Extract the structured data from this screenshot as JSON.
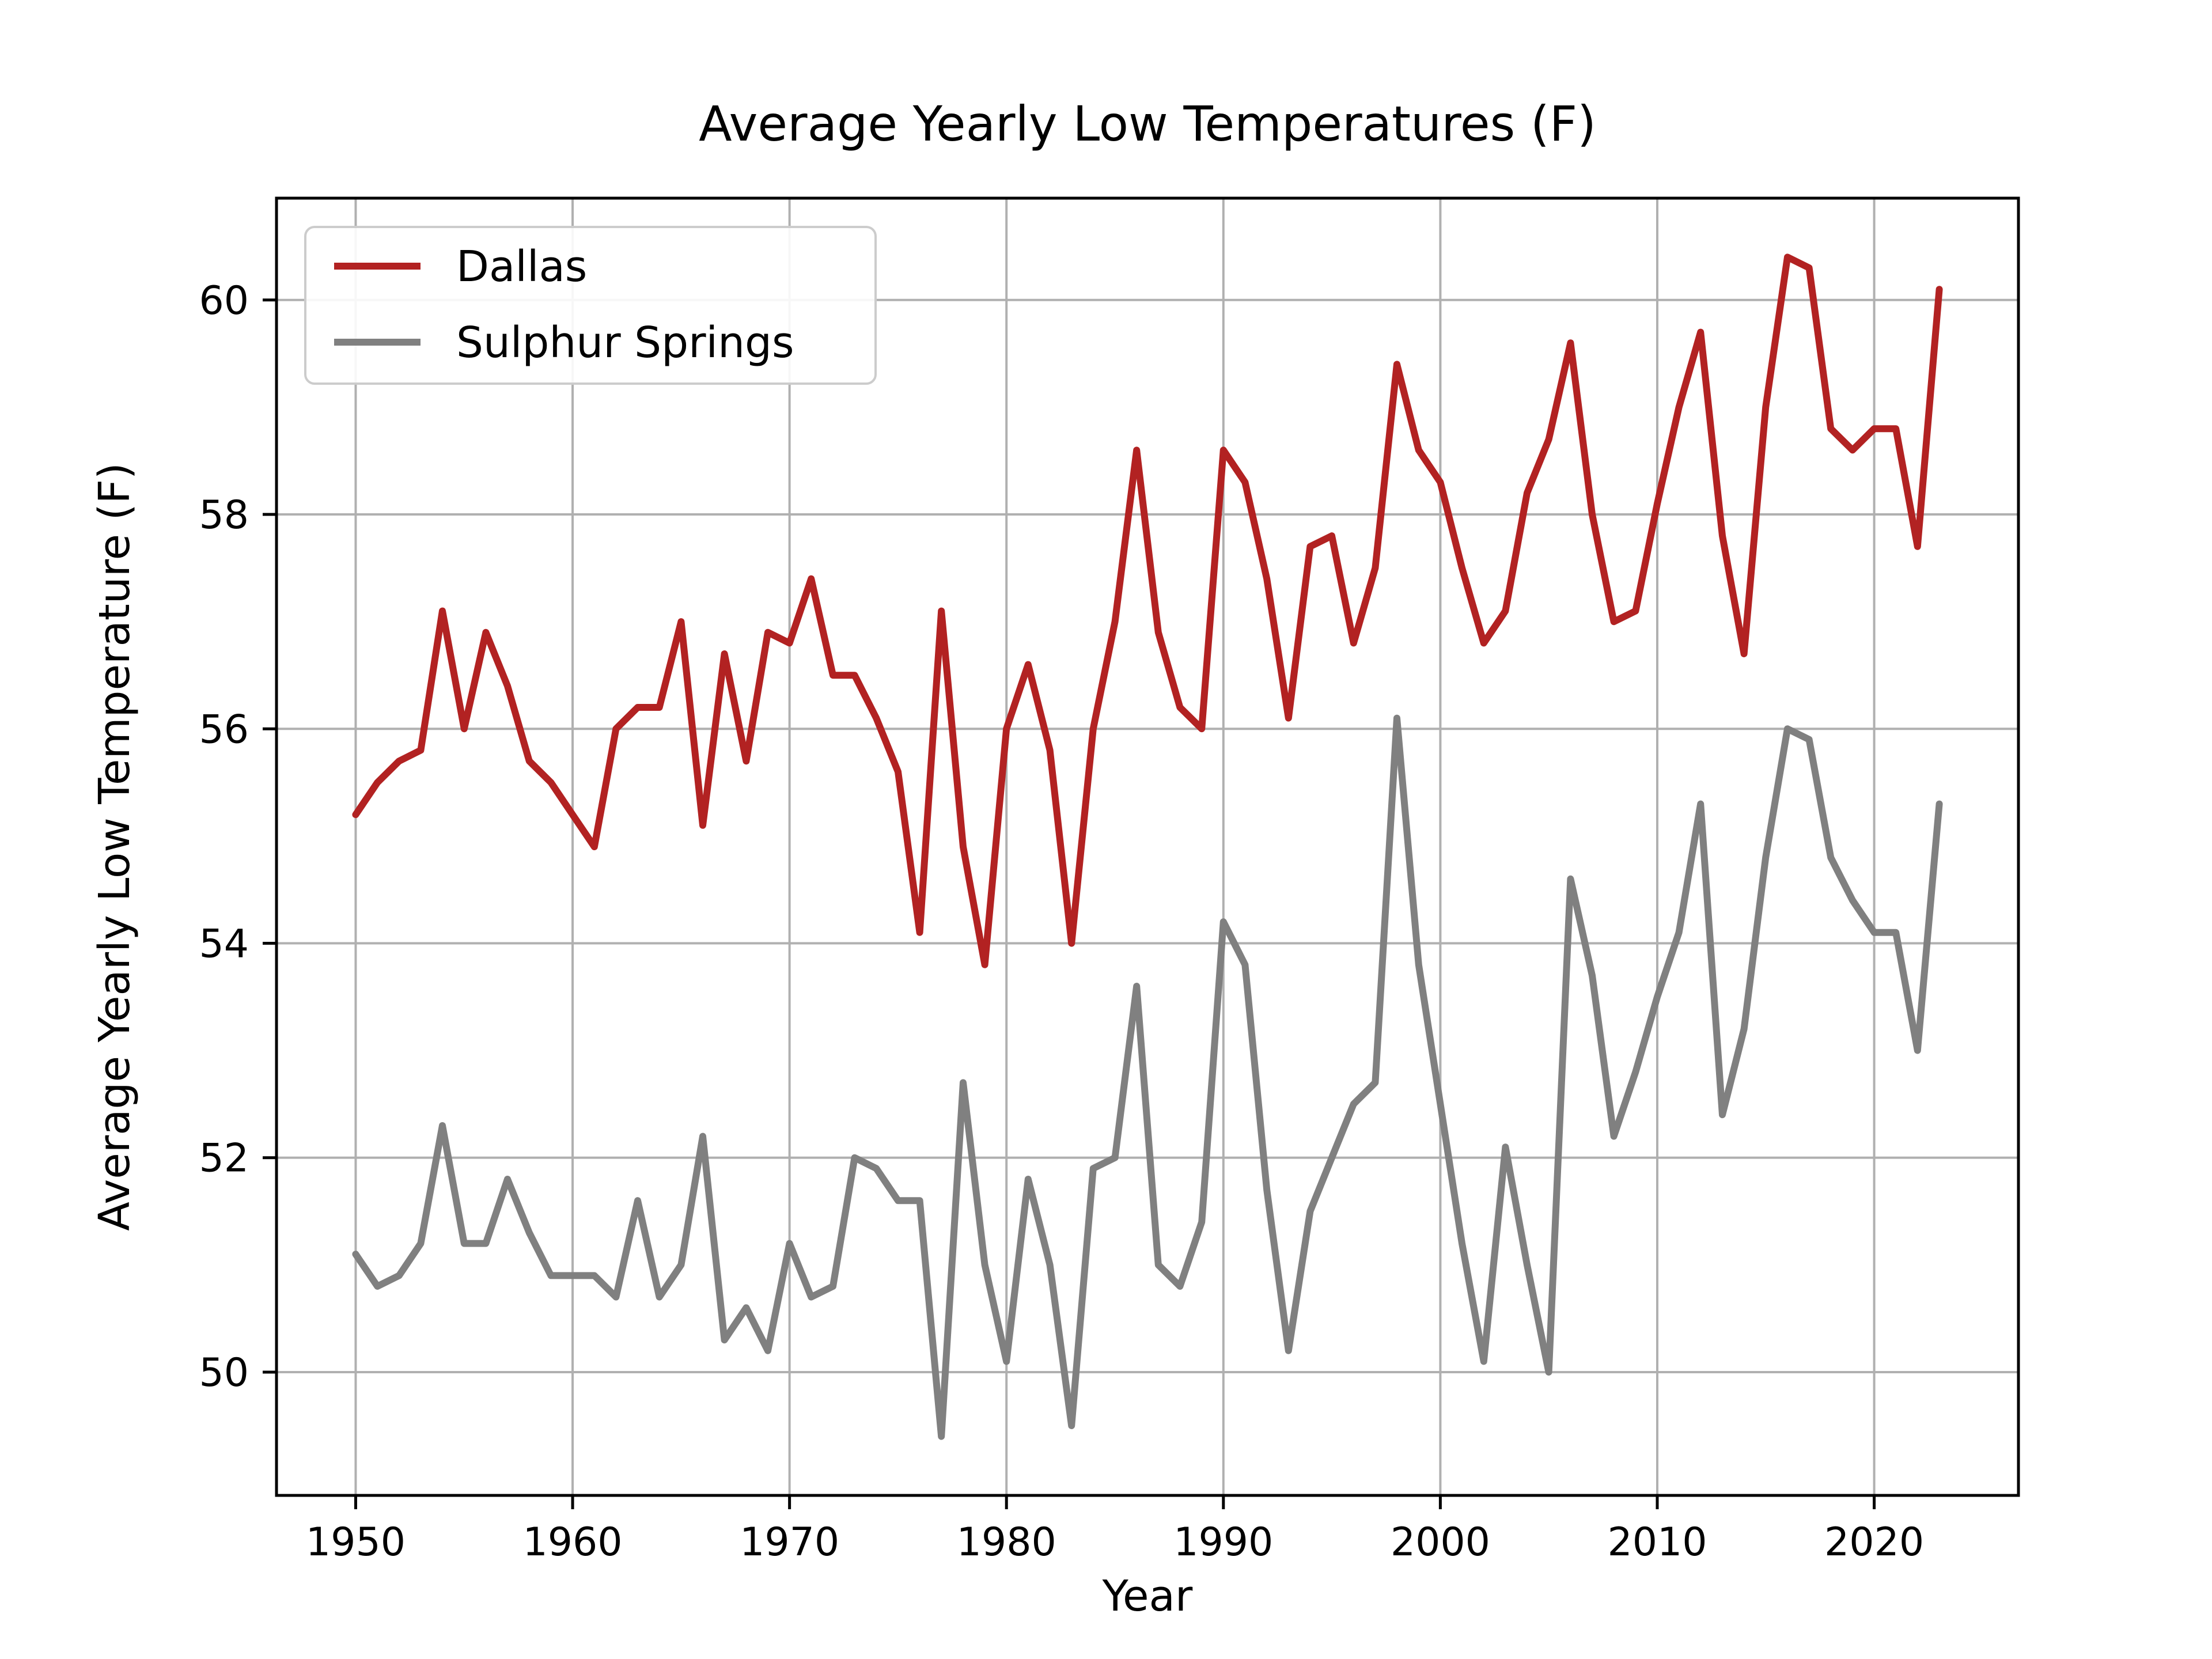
{
  "chart_data": {
    "type": "line",
    "title": "Average Yearly Low Temperatures (F)",
    "xlabel": "Year",
    "ylabel": "Average Yearly Low Temperature (F)",
    "grid": true,
    "legend_position": "upper left",
    "xlim": [
      1946.35,
      2026.65
    ],
    "ylim": [
      48.85,
      60.95
    ],
    "xticks": [
      1950,
      1960,
      1970,
      1980,
      1990,
      2000,
      2010,
      2020
    ],
    "yticks": [
      50,
      52,
      54,
      56,
      58,
      60
    ],
    "x": [
      1950,
      1951,
      1952,
      1953,
      1954,
      1955,
      1956,
      1957,
      1958,
      1959,
      1960,
      1961,
      1962,
      1963,
      1964,
      1965,
      1966,
      1967,
      1968,
      1969,
      1970,
      1971,
      1972,
      1973,
      1974,
      1975,
      1976,
      1977,
      1978,
      1979,
      1980,
      1981,
      1982,
      1983,
      1984,
      1985,
      1986,
      1987,
      1988,
      1989,
      1990,
      1991,
      1992,
      1993,
      1994,
      1995,
      1996,
      1997,
      1998,
      1999,
      2000,
      2001,
      2002,
      2003,
      2004,
      2005,
      2006,
      2007,
      2008,
      2009,
      2010,
      2011,
      2012,
      2013,
      2014,
      2015,
      2016,
      2017,
      2018,
      2019,
      2020,
      2021,
      2022,
      2023
    ],
    "series": [
      {
        "name": "Dallas",
        "color": "#b22222",
        "values": [
          55.2,
          55.5,
          55.7,
          55.8,
          57.1,
          56.0,
          56.9,
          56.4,
          55.7,
          55.5,
          55.2,
          54.9,
          56.0,
          56.2,
          56.2,
          57.0,
          55.1,
          56.7,
          55.7,
          56.9,
          56.8,
          57.4,
          56.5,
          56.5,
          56.1,
          55.6,
          54.1,
          57.1,
          54.9,
          53.8,
          56.0,
          56.6,
          55.8,
          54.0,
          56.0,
          57.0,
          58.6,
          56.9,
          56.2,
          56.0,
          58.6,
          58.3,
          57.4,
          56.1,
          57.7,
          57.8,
          56.8,
          57.5,
          59.4,
          58.6,
          58.3,
          57.5,
          56.8,
          57.1,
          58.2,
          58.7,
          59.6,
          58.0,
          57.0,
          57.1,
          58.1,
          59.0,
          59.7,
          57.8,
          56.7,
          59.0,
          60.4,
          60.3,
          58.8,
          58.6,
          58.8,
          58.8,
          57.7,
          60.1
        ]
      },
      {
        "name": "Sulphur Springs",
        "color": "#808080",
        "values": [
          51.1,
          50.8,
          50.9,
          51.2,
          52.3,
          51.2,
          51.2,
          51.8,
          51.3,
          50.9,
          50.9,
          50.9,
          50.7,
          51.6,
          50.7,
          51.0,
          52.2,
          50.3,
          50.6,
          50.2,
          51.2,
          50.7,
          50.8,
          52.0,
          51.9,
          51.6,
          51.6,
          49.4,
          52.7,
          51.0,
          50.1,
          51.8,
          51.0,
          49.5,
          51.9,
          52.0,
          53.6,
          51.0,
          50.8,
          51.4,
          54.2,
          53.8,
          51.7,
          50.2,
          51.5,
          52.0,
          52.5,
          52.7,
          56.1,
          53.8,
          52.5,
          51.2,
          50.1,
          52.1,
          51.0,
          50.0,
          54.6,
          53.7,
          52.2,
          52.8,
          53.5,
          54.1,
          55.3,
          52.4,
          53.2,
          54.8,
          56.0,
          55.9,
          54.8,
          54.4,
          54.1,
          54.1,
          53.0,
          55.3
        ]
      }
    ]
  },
  "style": {
    "grid_color": "#b0b0b0",
    "spine_color": "#000000",
    "legend_border_color": "#cccccc",
    "background": "#ffffff"
  }
}
